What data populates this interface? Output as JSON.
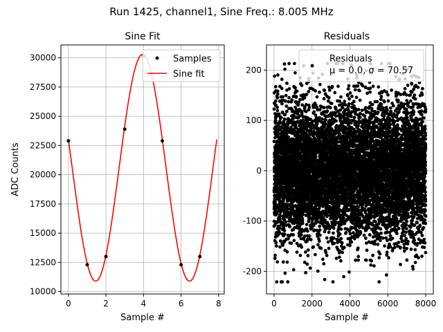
{
  "suptitle": "Run 1425, channel1, Sine Freq.: 8.005 MHz",
  "colors": {
    "samples": "#000000",
    "fit": "#ff0000",
    "residuals": "#000000",
    "grid": "#b0b0b0"
  },
  "chart_data": [
    {
      "type": "line",
      "title": "Sine Fit",
      "xlabel": "Sample #",
      "ylabel": "ADC Counts",
      "xlim": [
        -0.4,
        8.3
      ],
      "ylim": [
        9800,
        31100
      ],
      "xticks": [
        0,
        2,
        4,
        6,
        8
      ],
      "yticks": [
        10000,
        12500,
        15000,
        17500,
        20000,
        22500,
        25000,
        27500,
        30000
      ],
      "grid": true,
      "legend_position": "top-right",
      "series": [
        {
          "name": "Samples",
          "kind": "scatter",
          "x": [
            0,
            1,
            2,
            3,
            4,
            5,
            6,
            7
          ],
          "y": [
            22900,
            12300,
            13000,
            23900,
            30200,
            22900,
            12300,
            13000
          ]
        },
        {
          "name": "Sine fit",
          "kind": "line",
          "model": {
            "offset": 20600,
            "amplitude": 9700,
            "period": 5.0,
            "peak_at": 3.95
          },
          "x_range": [
            0,
            7.9
          ]
        }
      ]
    },
    {
      "type": "scatter",
      "title": "Residuals",
      "xlabel": "Sample #",
      "xlim": [
        -400,
        8400
      ],
      "ylim": [
        -245,
        250
      ],
      "xticks": [
        0,
        2000,
        4000,
        6000,
        8000
      ],
      "yticks": [
        -200,
        -100,
        0,
        100,
        200
      ],
      "grid": true,
      "legend_position": "top-right",
      "series": [
        {
          "name": "Residuals",
          "legend_stats": "μ = 0.0, σ = 70.57",
          "n_points": 8000,
          "mean": 0.0,
          "std": 70.57,
          "min": -221,
          "max": 213
        }
      ]
    }
  ]
}
